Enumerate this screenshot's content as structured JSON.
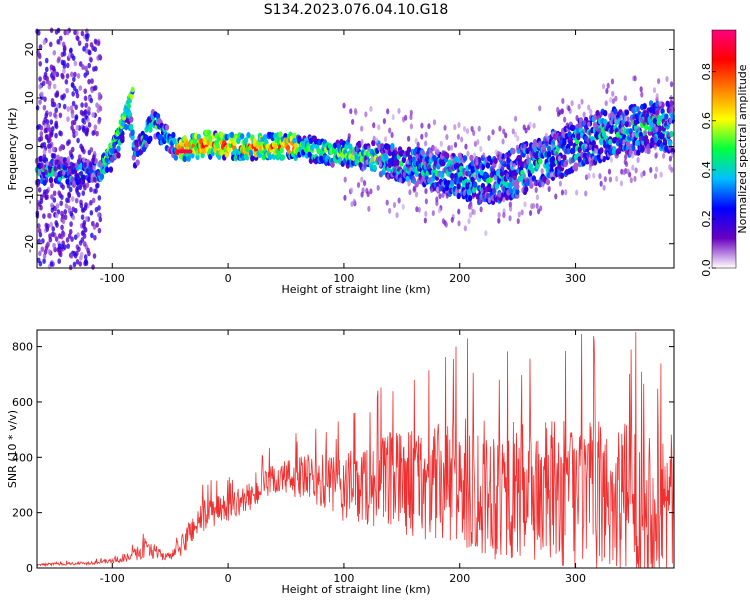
{
  "title": "S134.2023.076.04.10.G18",
  "chart_data": [
    {
      "type": "heatmap",
      "xlabel": "Height of straight line (km)",
      "ylabel": "Frequency (Hz)",
      "xlim": [
        -165,
        385
      ],
      "ylim": [
        -25,
        24
      ],
      "x_ticks": [
        -100,
        0,
        100,
        200,
        300
      ],
      "y_ticks": [
        -20,
        -10,
        0,
        10,
        20
      ],
      "ridge": {
        "x": [
          -150,
          -130,
          -110,
          -100,
          -92,
          -86,
          -80,
          -75,
          -70,
          -64,
          -58,
          -50,
          -42,
          -35,
          -20,
          0,
          20,
          40,
          60,
          80,
          100,
          120,
          140,
          160,
          180,
          200,
          220,
          240,
          260,
          280,
          300,
          320,
          340,
          360,
          380
        ],
        "y": [
          -5,
          -5.5,
          -5,
          -2,
          2,
          7,
          -2,
          0,
          3,
          5,
          3,
          1,
          -1,
          0,
          0.5,
          0,
          0,
          0,
          0,
          -1,
          -1.5,
          -2,
          -3,
          -4,
          -5,
          -6,
          -7,
          -6,
          -4,
          -2,
          0,
          2,
          3,
          4,
          4
        ]
      },
      "branch": {
        "x": [
          -108,
          -100,
          -95,
          -90,
          -86,
          -82
        ],
        "y": [
          -3,
          0,
          3,
          6,
          9,
          12
        ]
      },
      "colorbar": {
        "label": "Normalized spectral amplitude",
        "ticks": [
          0.0,
          0.2,
          0.4,
          0.6,
          0.8
        ],
        "range": [
          0,
          0.97
        ],
        "colors": [
          "#ffffff",
          "#6a00c0",
          "#0000ff",
          "#00c0ff",
          "#00ff40",
          "#ffff00",
          "#ff8000",
          "#ff0000",
          "#ff0080"
        ]
      }
    },
    {
      "type": "line",
      "xlabel": "Height of straight line (km)",
      "ylabel": "SNR (10 * v/v)",
      "xlim": [
        -165,
        385
      ],
      "ylim": [
        0,
        860
      ],
      "x_ticks": [
        -100,
        0,
        100,
        200,
        300
      ],
      "y_ticks": [
        0,
        200,
        400,
        600,
        800
      ],
      "color": "#f03030",
      "envelope": {
        "x": [
          -165,
          -120,
          -90,
          -75,
          -70,
          -60,
          -50,
          -40,
          -30,
          -20,
          0,
          20,
          40,
          60,
          80,
          100,
          120,
          140,
          160,
          180,
          200,
          220,
          240,
          260,
          280,
          300,
          320,
          340,
          360,
          385
        ],
        "mean": [
          12,
          18,
          30,
          60,
          80,
          50,
          40,
          80,
          150,
          190,
          220,
          260,
          320,
          330,
          310,
          290,
          300,
          310,
          310,
          300,
          300,
          290,
          280,
          270,
          270,
          260,
          260,
          250,
          240,
          230
        ],
        "spread": [
          4,
          6,
          10,
          30,
          40,
          20,
          15,
          40,
          60,
          60,
          50,
          50,
          60,
          80,
          100,
          130,
          150,
          180,
          200,
          220,
          240,
          250,
          260,
          260,
          270,
          270,
          270,
          280,
          280,
          280
        ]
      }
    }
  ]
}
